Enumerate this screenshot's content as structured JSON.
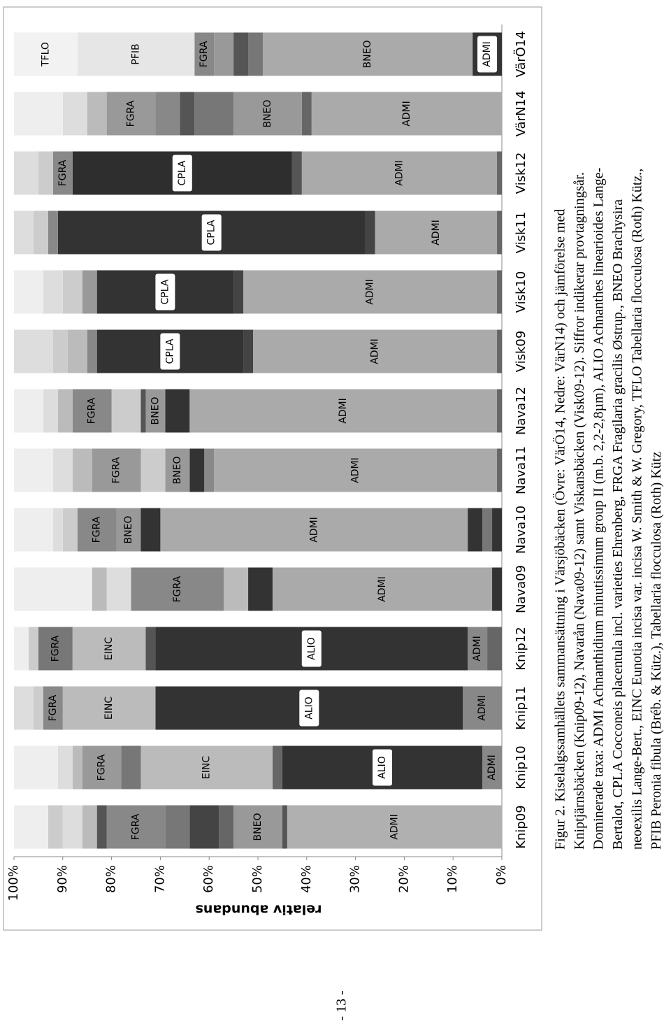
{
  "chart_data": {
    "type": "stacked-bar",
    "y_label": "relativ abundans",
    "categories": [
      "Knip09",
      "Knip10",
      "Knip11",
      "Knip12",
      "Nava09",
      "Nava10",
      "Nava11",
      "Nava12",
      "Visk09",
      "Visk10",
      "Visk11",
      "Visk12",
      "VärN14",
      "VärÖ14"
    ],
    "ylim": [
      0,
      100
    ],
    "yticks": [
      {
        "value": 0,
        "label": "0%"
      },
      {
        "value": 10,
        "label": "10%"
      },
      {
        "value": 20,
        "label": "20%"
      },
      {
        "value": 30,
        "label": "30%"
      },
      {
        "value": 40,
        "label": "40%"
      },
      {
        "value": 50,
        "label": "50%"
      },
      {
        "value": 60,
        "label": "60%"
      },
      {
        "value": 70,
        "label": "70%"
      },
      {
        "value": 80,
        "label": "80%"
      },
      {
        "value": 90,
        "label": "90%"
      },
      {
        "value": 100,
        "label": "100%"
      }
    ],
    "grid": false,
    "bars": [
      {
        "segments": [
          {
            "value": 44,
            "color": "#b0b0b0",
            "label": "ADMI"
          },
          {
            "value": 1,
            "color": "#555555"
          },
          {
            "value": 10,
            "color": "#999999",
            "label": "BNEO"
          },
          {
            "value": 3,
            "color": "#666666"
          },
          {
            "value": 6,
            "color": "#444444"
          },
          {
            "value": 5,
            "color": "#777777"
          },
          {
            "value": 12,
            "color": "#888888",
            "label": "FGRA"
          },
          {
            "value": 2,
            "color": "#555555"
          },
          {
            "value": 3,
            "color": "#bbbbbb"
          },
          {
            "value": 4,
            "color": "#dddddd"
          },
          {
            "value": 3,
            "color": "#cccccc"
          },
          {
            "value": 7,
            "color": "#eeeeee"
          }
        ]
      },
      {
        "segments": [
          {
            "value": 4,
            "color": "#888888",
            "label": "ADMI"
          },
          {
            "value": 41,
            "color": "#333333",
            "label": "ALIO"
          },
          {
            "value": 2,
            "color": "#666666"
          },
          {
            "value": 27,
            "color": "#bbbbbb",
            "label": "EINC"
          },
          {
            "value": 4,
            "color": "#777777"
          },
          {
            "value": 8,
            "color": "#999999",
            "label": "FGRA"
          },
          {
            "value": 2,
            "color": "#bbbbbb"
          },
          {
            "value": 3,
            "color": "#dddddd"
          },
          {
            "value": 9,
            "color": "#eeeeee"
          }
        ]
      },
      {
        "segments": [
          {
            "value": 8,
            "color": "#888888",
            "label": "ADMI"
          },
          {
            "value": 63,
            "color": "#333333",
            "label": "ALIO"
          },
          {
            "value": 19,
            "color": "#bbbbbb",
            "label": "EINC"
          },
          {
            "value": 4,
            "color": "#888888",
            "label": "FGRA"
          },
          {
            "value": 2,
            "color": "#cccccc"
          },
          {
            "value": 4,
            "color": "#dddddd"
          }
        ]
      },
      {
        "segments": [
          {
            "value": 3,
            "color": "#666666"
          },
          {
            "value": 4,
            "color": "#888888",
            "label": "ADMI"
          },
          {
            "value": 64,
            "color": "#333333",
            "label": "ALIO"
          },
          {
            "value": 2,
            "color": "#555555"
          },
          {
            "value": 15,
            "color": "#bbbbbb",
            "label": "EINC"
          },
          {
            "value": 7,
            "color": "#777777",
            "label": "FGRA"
          },
          {
            "value": 2,
            "color": "#cccccc"
          },
          {
            "value": 3,
            "color": "#eeeeee"
          }
        ]
      },
      {
        "segments": [
          {
            "value": 2,
            "color": "#333333"
          },
          {
            "value": 45,
            "color": "#aaaaaa",
            "label": "ADMI"
          },
          {
            "value": 5,
            "color": "#333333"
          },
          {
            "value": 5,
            "color": "#bbbbbb"
          },
          {
            "value": 19,
            "color": "#888888",
            "label": "FGRA"
          },
          {
            "value": 5,
            "color": "#dddddd"
          },
          {
            "value": 3,
            "color": "#bbbbbb"
          },
          {
            "value": 16,
            "color": "#eeeeee"
          }
        ]
      },
      {
        "segments": [
          {
            "value": 2,
            "color": "#333333"
          },
          {
            "value": 2,
            "color": "#777777"
          },
          {
            "value": 3,
            "color": "#333333"
          },
          {
            "value": 63,
            "color": "#aaaaaa",
            "label": "ADMI"
          },
          {
            "value": 4,
            "color": "#333333"
          },
          {
            "value": 5,
            "color": "#999999",
            "label": "BNEO"
          },
          {
            "value": 8,
            "color": "#888888",
            "label": "FGRA"
          },
          {
            "value": 3,
            "color": "#cccccc"
          },
          {
            "value": 2,
            "color": "#dddddd"
          },
          {
            "value": 8,
            "color": "#eeeeee"
          }
        ]
      },
      {
        "segments": [
          {
            "value": 1,
            "color": "#666666"
          },
          {
            "value": 58,
            "color": "#aaaaaa",
            "label": "ADMI"
          },
          {
            "value": 2,
            "color": "#888888"
          },
          {
            "value": 3,
            "color": "#333333"
          },
          {
            "value": 5,
            "color": "#999999",
            "label": "BNEO"
          },
          {
            "value": 5,
            "color": "#cccccc"
          },
          {
            "value": 10,
            "color": "#999999",
            "label": "FGRA"
          },
          {
            "value": 4,
            "color": "#bbbbbb"
          },
          {
            "value": 4,
            "color": "#dddddd"
          },
          {
            "value": 8,
            "color": "#eeeeee"
          }
        ]
      },
      {
        "segments": [
          {
            "value": 1,
            "color": "#666666"
          },
          {
            "value": 63,
            "color": "#aaaaaa",
            "label": "ADMI"
          },
          {
            "value": 5,
            "color": "#333333"
          },
          {
            "value": 4,
            "color": "#999999",
            "label": "BNEO"
          },
          {
            "value": 1,
            "color": "#555555"
          },
          {
            "value": 6,
            "color": "#cccccc"
          },
          {
            "value": 8,
            "color": "#888888",
            "label": "FGRA"
          },
          {
            "value": 3,
            "color": "#bbbbbb"
          },
          {
            "value": 3,
            "color": "#dddddd"
          },
          {
            "value": 6,
            "color": "#eeeeee"
          }
        ]
      },
      {
        "segments": [
          {
            "value": 1,
            "color": "#666666"
          },
          {
            "value": 50,
            "color": "#aaaaaa",
            "label": "ADMI"
          },
          {
            "value": 2,
            "color": "#444444"
          },
          {
            "value": 30,
            "color": "#333333",
            "label": "CPLA"
          },
          {
            "value": 2,
            "color": "#888888"
          },
          {
            "value": 4,
            "color": "#bbbbbb"
          },
          {
            "value": 3,
            "color": "#cccccc"
          },
          {
            "value": 8,
            "color": "#dddddd"
          }
        ]
      },
      {
        "segments": [
          {
            "value": 1,
            "color": "#666666"
          },
          {
            "value": 52,
            "color": "#aaaaaa",
            "label": "ADMI"
          },
          {
            "value": 2,
            "color": "#444444"
          },
          {
            "value": 28,
            "color": "#333333",
            "label": "CPLA"
          },
          {
            "value": 3,
            "color": "#999999"
          },
          {
            "value": 4,
            "color": "#cccccc"
          },
          {
            "value": 4,
            "color": "#dddddd"
          },
          {
            "value": 6,
            "color": "#eeeeee"
          }
        ]
      },
      {
        "segments": [
          {
            "value": 1,
            "color": "#666666"
          },
          {
            "value": 25,
            "color": "#aaaaaa",
            "label": "ADMI"
          },
          {
            "value": 2,
            "color": "#444444"
          },
          {
            "value": 63,
            "color": "#333333",
            "label": "CPLA"
          },
          {
            "value": 2,
            "color": "#888888"
          },
          {
            "value": 3,
            "color": "#cccccc"
          },
          {
            "value": 4,
            "color": "#dddddd"
          }
        ]
      },
      {
        "segments": [
          {
            "value": 1,
            "color": "#666666"
          },
          {
            "value": 40,
            "color": "#aaaaaa",
            "label": "ADMI"
          },
          {
            "value": 2,
            "color": "#555555"
          },
          {
            "value": 45,
            "color": "#2e2e2e",
            "label": "CPLA"
          },
          {
            "value": 4,
            "color": "#888888",
            "label": "FGRA"
          },
          {
            "value": 3,
            "color": "#cccccc"
          },
          {
            "value": 5,
            "color": "#dddddd"
          }
        ]
      },
      {
        "segments": [
          {
            "value": 39,
            "color": "#aaaaaa",
            "label": "ADMI"
          },
          {
            "value": 2,
            "color": "#666666"
          },
          {
            "value": 14,
            "color": "#999999",
            "label": "BNEO"
          },
          {
            "value": 8,
            "color": "#777777"
          },
          {
            "value": 3,
            "color": "#555555"
          },
          {
            "value": 5,
            "color": "#888888"
          },
          {
            "value": 10,
            "color": "#999999",
            "label": "FGRA"
          },
          {
            "value": 4,
            "color": "#bbbbbb"
          },
          {
            "value": 5,
            "color": "#dddddd"
          },
          {
            "value": 10,
            "color": "#eeeeee"
          }
        ]
      },
      {
        "segments": [
          {
            "value": 6,
            "color": "#333333",
            "label": "ADMI"
          },
          {
            "value": 43,
            "color": "#aaaaaa",
            "label": "BNEO"
          },
          {
            "value": 3,
            "color": "#777777"
          },
          {
            "value": 3,
            "color": "#555555"
          },
          {
            "value": 4,
            "color": "#999999"
          },
          {
            "value": 4,
            "color": "#888888",
            "label": "FGRA"
          },
          {
            "value": 24,
            "color": "#e6e6e6",
            "label": "PFIB"
          },
          {
            "value": 13,
            "color": "#f2f2f2",
            "label": "TFLO"
          }
        ]
      }
    ]
  },
  "caption": [
    "Figur 2. Kiselalgssamhällets sammansättning i Värsjöbäcken (Övre: VärÖ14, Nedre: VärN14) och jämförelse med",
    "Kniptjärnsbäcken (Knip09-12), Navarån (Nava09-12) samt Viskansbäcken (Visk09-12). Siffror indikerar provtagningsår.",
    "Dominerade taxa: ADMI Achnanthidium minutissimum group II (m.b. 2,2-2,8µm), ALIO Achnanthes linearioides Lange-",
    "Bertalot, CPLA Cocconeis placentula incl. varieties Ehrenberg, FRGA Fragilaria gracilis Østrup., BNEO Brachysira",
    "neoexilis Lange-Bert., EINC Eunotia incisa var. incisa W. Smith & W. Gregory, TFLO Tabellaria flocculosa (Roth) Kütz.,",
    "PFIB Peronia fibula (Bréb. & Kütz.), Tabellaria flocculosa (Roth) Kütz"
  ],
  "page_number": "- 13 -"
}
